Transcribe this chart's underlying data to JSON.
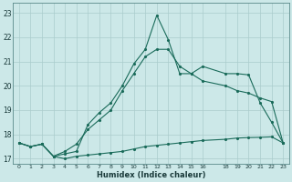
{
  "xlabel": "Humidex (Indice chaleur)",
  "background_color": "#cce8e8",
  "grid_color": "#aacccc",
  "line_color": "#1a6b5a",
  "xlim": [
    -0.5,
    23.5
  ],
  "ylim": [
    16.8,
    23.4
  ],
  "yticks": [
    17,
    18,
    19,
    20,
    21,
    22,
    23
  ],
  "xticks": [
    0,
    1,
    2,
    3,
    4,
    5,
    6,
    7,
    8,
    9,
    10,
    11,
    12,
    13,
    14,
    15,
    16,
    18,
    19,
    20,
    21,
    22,
    23
  ],
  "line1_x": [
    0,
    1,
    2,
    3,
    4,
    5,
    6,
    7,
    8,
    9,
    10,
    11,
    12,
    13,
    14,
    15,
    16,
    18,
    19,
    20,
    21,
    22,
    23
  ],
  "line1_y": [
    17.65,
    17.5,
    17.6,
    17.1,
    17.0,
    17.1,
    17.15,
    17.2,
    17.25,
    17.3,
    17.4,
    17.5,
    17.55,
    17.6,
    17.65,
    17.7,
    17.75,
    17.8,
    17.85,
    17.87,
    17.88,
    17.9,
    17.65
  ],
  "line2_x": [
    0,
    1,
    2,
    3,
    4,
    5,
    6,
    7,
    8,
    9,
    10,
    11,
    12,
    13,
    14,
    15,
    16,
    18,
    19,
    20,
    21,
    22,
    23
  ],
  "line2_y": [
    17.65,
    17.5,
    17.6,
    17.1,
    17.3,
    17.6,
    18.2,
    18.6,
    19.0,
    19.8,
    20.5,
    21.2,
    21.5,
    21.5,
    20.8,
    20.5,
    20.2,
    20.0,
    19.8,
    19.7,
    19.5,
    19.35,
    17.65
  ],
  "line3_x": [
    0,
    1,
    2,
    3,
    4,
    5,
    6,
    7,
    8,
    9,
    10,
    11,
    12,
    13,
    14,
    15,
    16,
    18,
    19,
    20,
    21,
    22,
    23
  ],
  "line3_y": [
    17.65,
    17.5,
    17.6,
    17.1,
    17.2,
    17.3,
    18.4,
    18.9,
    19.3,
    20.0,
    20.9,
    21.5,
    22.9,
    21.9,
    20.5,
    20.5,
    20.8,
    20.5,
    20.5,
    20.45,
    19.3,
    18.5,
    17.65
  ]
}
